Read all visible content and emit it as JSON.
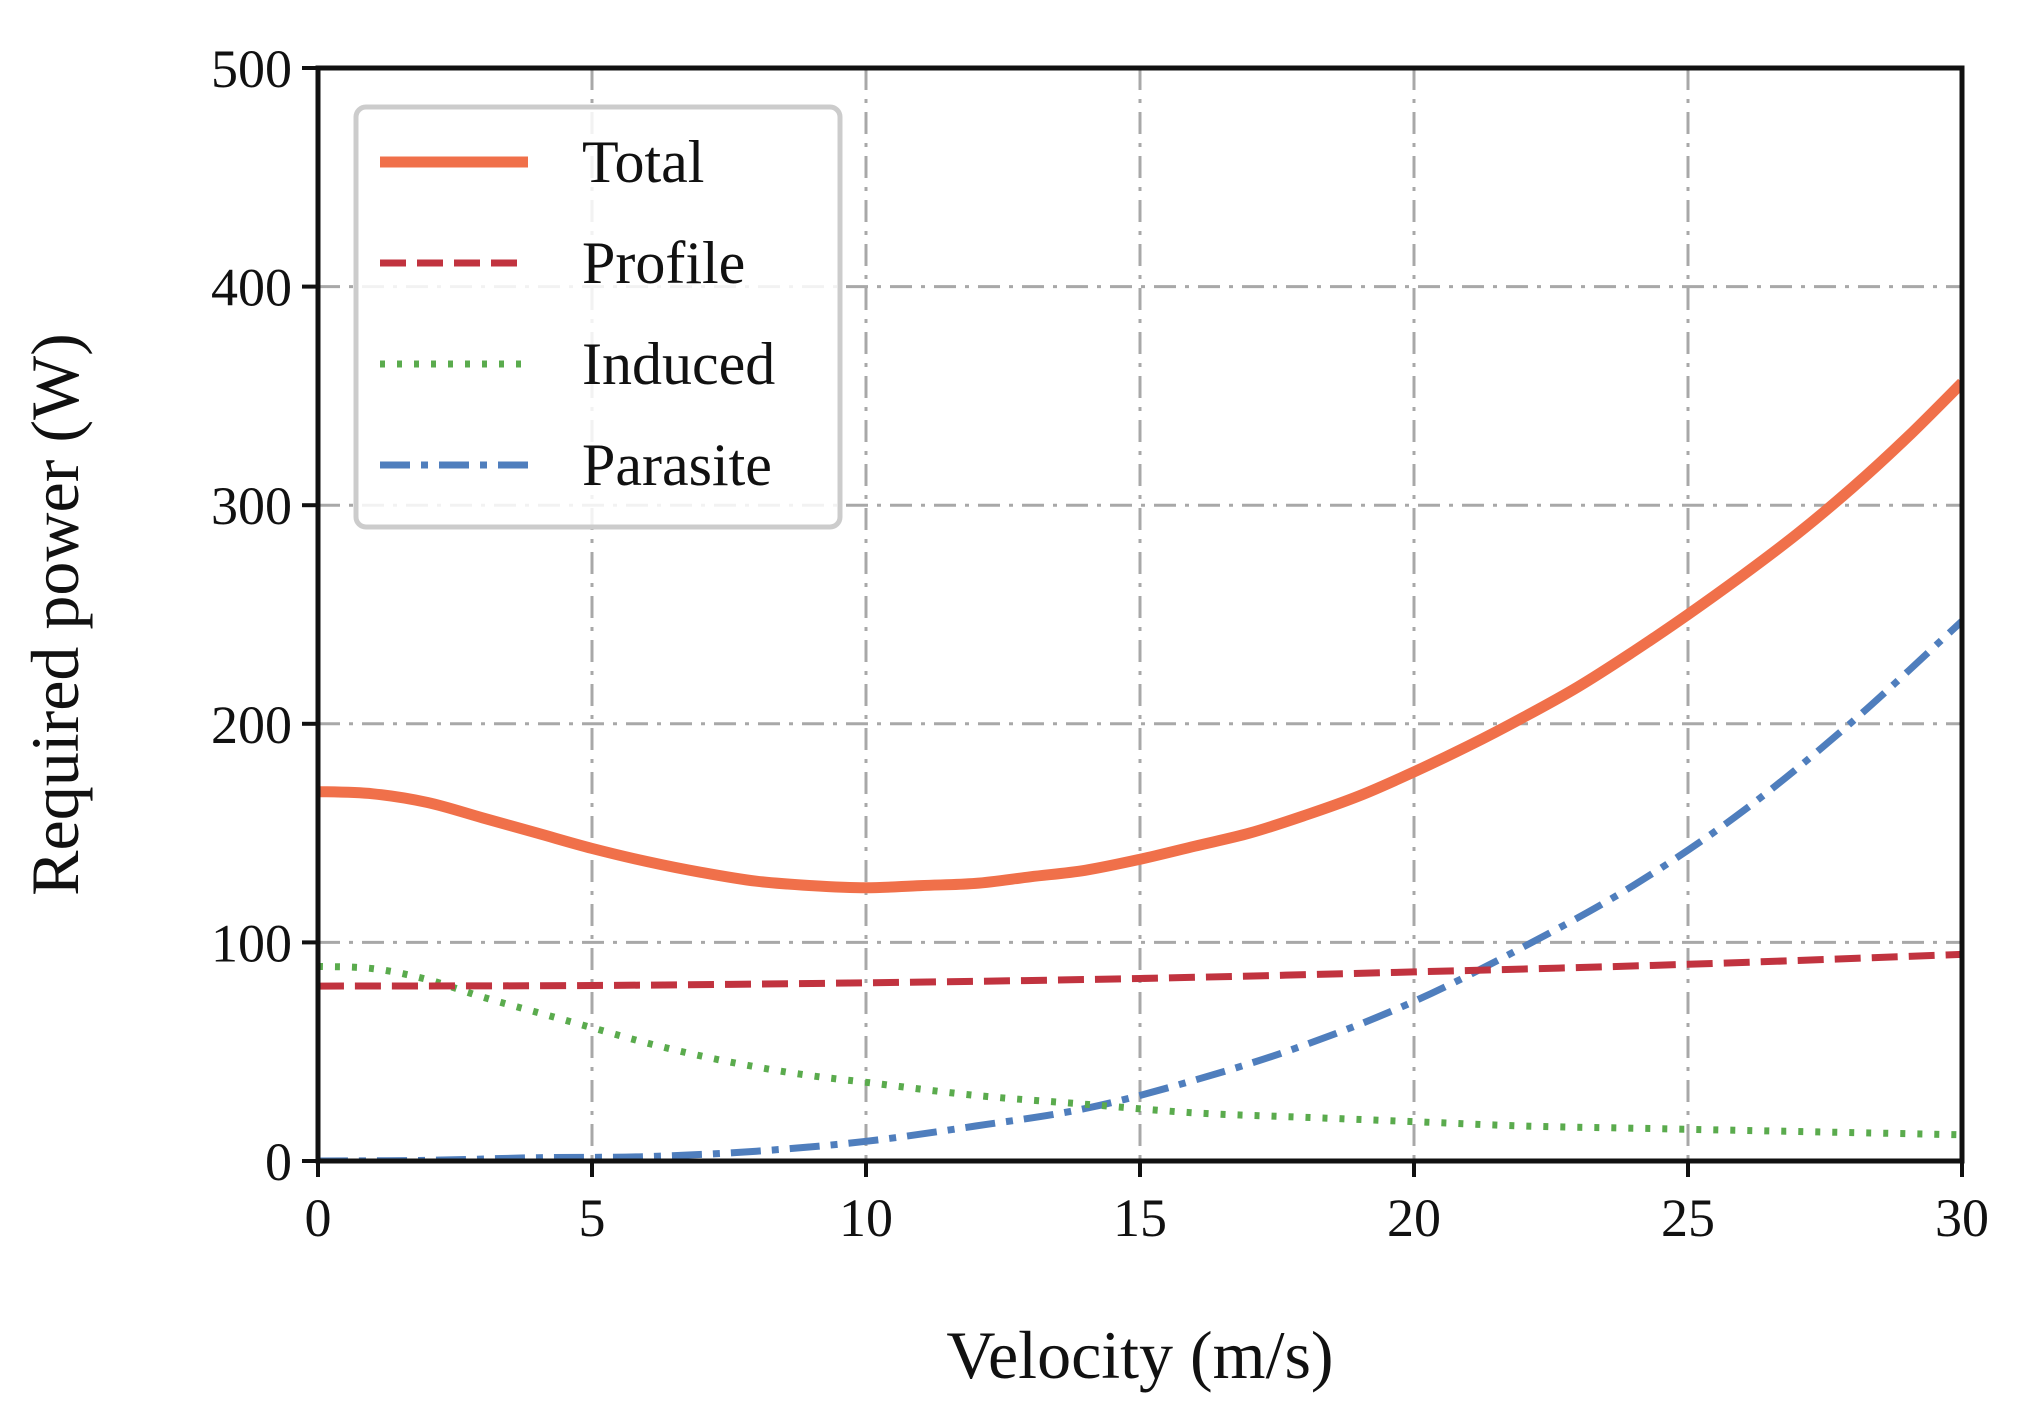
{
  "chart_data": {
    "type": "line",
    "title": "",
    "xlabel": "Velocity (m/s)",
    "ylabel": "Required power (W)",
    "xlim": [
      0,
      30
    ],
    "ylim": [
      0,
      500
    ],
    "xticks": [
      0,
      5,
      10,
      15,
      20,
      25,
      30
    ],
    "yticks": [
      0,
      100,
      200,
      300,
      400,
      500
    ],
    "xtick_labels": [
      "0",
      "5",
      "10",
      "15",
      "20",
      "25",
      "30"
    ],
    "ytick_labels": [
      "0",
      "100",
      "200",
      "300",
      "400",
      "500"
    ],
    "grid": true,
    "legend_position": "top-left",
    "series": [
      {
        "name": "Total",
        "color": "#f0704a",
        "style": "solid",
        "x": [
          0,
          1,
          2,
          3,
          4,
          5,
          6,
          7,
          8,
          9,
          10,
          11,
          12,
          13,
          14,
          15,
          16,
          17,
          18,
          19,
          20,
          21,
          22,
          23,
          24,
          25,
          26,
          27,
          28,
          29,
          30
        ],
        "y": [
          169,
          168,
          164,
          157,
          150,
          143,
          137,
          132,
          128,
          126,
          125,
          126,
          127,
          130,
          133,
          138,
          144,
          150,
          158,
          167,
          178,
          190,
          203,
          217,
          233,
          250,
          268,
          287,
          308,
          331,
          356
        ]
      },
      {
        "name": "Profile",
        "color": "#c1333f",
        "style": "dashed",
        "x": [
          0,
          5,
          10,
          15,
          20,
          25,
          30
        ],
        "y": [
          80,
          80.3,
          81.5,
          83.5,
          86.5,
          90,
          94.5
        ]
      },
      {
        "name": "Induced",
        "color": "#5aab4d",
        "style": "dotted",
        "x": [
          0,
          1,
          2,
          3,
          4,
          5,
          6,
          7,
          8,
          9,
          10,
          12,
          14,
          16,
          18,
          20,
          22,
          24,
          26,
          28,
          30
        ],
        "y": [
          89,
          88,
          83,
          75,
          68,
          61,
          54,
          48,
          43,
          39,
          36,
          30,
          26,
          22,
          20,
          18,
          16,
          15,
          14,
          13,
          12
        ]
      },
      {
        "name": "Parasite",
        "color": "#4f7ebd",
        "style": "dashdot",
        "x": [
          0,
          2,
          4,
          6,
          8,
          10,
          12,
          14,
          16,
          18,
          20,
          22,
          24,
          26,
          28,
          30
        ],
        "y": [
          0,
          0.3,
          1.5,
          2,
          4.5,
          9,
          16,
          24,
          37,
          53,
          73,
          98,
          126,
          160,
          201,
          247
        ]
      }
    ]
  }
}
